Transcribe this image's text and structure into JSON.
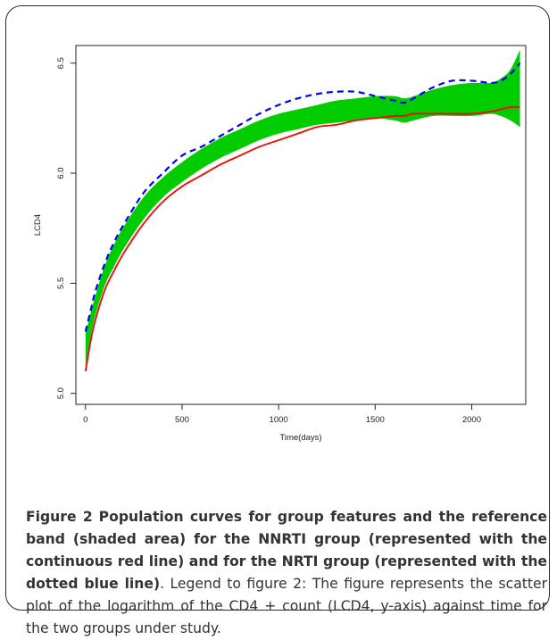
{
  "caption": {
    "figure_number": "Figure 2",
    "title": "Population curves for group features and the reference band (shaded area) for the NNRTI group (represented with the continuous red line) and for the NRTI group (represented with the dotted blue line)",
    "legend": ". Legend to figure 2: The figure represents the scatter plot of the logarithm of the CD4 + count (LCD4, y-axis) against time for the two groups under study."
  },
  "chart_data": {
    "type": "line",
    "title": "",
    "xlabel": "Time(days)",
    "ylabel": "LCD4",
    "xlim": [
      -50,
      2280
    ],
    "ylim": [
      4.95,
      6.58
    ],
    "xticks": [
      0,
      500,
      1000,
      1500,
      2000
    ],
    "yticks": [
      5.0,
      5.5,
      6.0,
      6.5
    ],
    "xtick_labels": [
      "0",
      "500",
      "1000",
      "1500",
      "2000"
    ],
    "ytick_labels": [
      "5.0",
      "5.5",
      "6.0",
      "6.5"
    ],
    "colors": {
      "band": "#00cc00",
      "nnrti": "#ff0000",
      "nrti": "#0000ff",
      "axis": "#222222"
    },
    "x": [
      0,
      25,
      50,
      100,
      150,
      200,
      300,
      400,
      500,
      600,
      700,
      800,
      900,
      1000,
      1100,
      1200,
      1300,
      1400,
      1500,
      1600,
      1650,
      1700,
      1800,
      1900,
      2000,
      2100,
      2150,
      2200,
      2250
    ],
    "series": [
      {
        "name": "NNRTI",
        "style": "solid",
        "values": [
          5.1,
          5.23,
          5.33,
          5.47,
          5.56,
          5.64,
          5.77,
          5.87,
          5.94,
          5.99,
          6.04,
          6.08,
          6.12,
          6.15,
          6.18,
          6.21,
          6.22,
          6.24,
          6.25,
          6.26,
          6.26,
          6.27,
          6.27,
          6.27,
          6.27,
          6.28,
          6.29,
          6.3,
          6.3
        ]
      },
      {
        "name": "NRTI",
        "style": "dashed",
        "values": [
          5.28,
          5.37,
          5.46,
          5.59,
          5.69,
          5.77,
          5.91,
          6.0,
          6.08,
          6.12,
          6.17,
          6.22,
          6.27,
          6.31,
          6.34,
          6.36,
          6.37,
          6.37,
          6.35,
          6.33,
          6.32,
          6.34,
          6.39,
          6.42,
          6.42,
          6.41,
          6.42,
          6.45,
          6.5
        ]
      },
      {
        "name": "Reference band",
        "style": "band",
        "upper": [
          5.27,
          5.36,
          5.44,
          5.58,
          5.68,
          5.76,
          5.89,
          5.98,
          6.05,
          6.11,
          6.16,
          6.2,
          6.24,
          6.27,
          6.29,
          6.31,
          6.33,
          6.34,
          6.35,
          6.35,
          6.34,
          6.35,
          6.38,
          6.4,
          6.41,
          6.41,
          6.43,
          6.47,
          6.56
        ],
        "lower": [
          5.12,
          5.25,
          5.35,
          5.49,
          5.58,
          5.66,
          5.79,
          5.89,
          5.96,
          6.02,
          6.07,
          6.11,
          6.15,
          6.18,
          6.2,
          6.22,
          6.23,
          6.24,
          6.25,
          6.24,
          6.23,
          6.24,
          6.26,
          6.26,
          6.26,
          6.27,
          6.26,
          6.24,
          6.21
        ]
      }
    ]
  }
}
